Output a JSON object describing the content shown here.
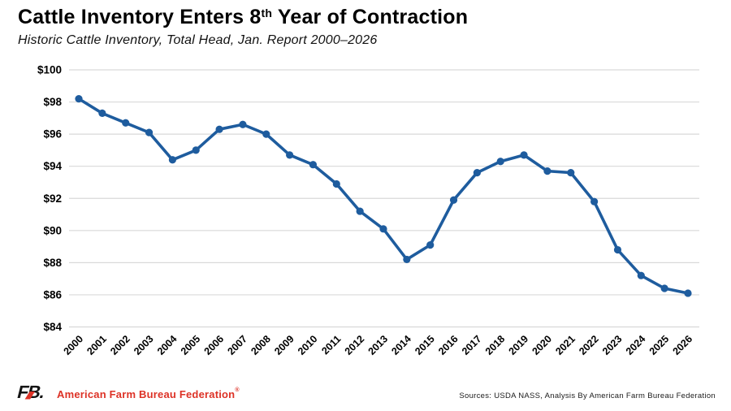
{
  "header": {
    "title_prefix": "Cattle Inventory Enters 8",
    "title_sup": "th",
    "title_suffix": " Year of Contraction",
    "subtitle": "Historic Cattle Inventory, Total Head, Jan. Report 2000–2026"
  },
  "chart_data": {
    "type": "line",
    "title": "Cattle Inventory Enters 8th Year of Contraction",
    "subtitle": "Historic Cattle Inventory, Total Head, Jan. Report 2000–2026",
    "x_labels": [
      "2000",
      "2001",
      "2002",
      "2003",
      "2004",
      "2005",
      "2006",
      "2007",
      "2008",
      "2009",
      "2010",
      "2011",
      "2012",
      "2013",
      "2014",
      "2015",
      "2016",
      "2017",
      "2018",
      "2019",
      "2020",
      "2021",
      "2022",
      "2023",
      "2024",
      "2025",
      "2026"
    ],
    "series": [
      {
        "name": "Total Head (Jan. Report)",
        "values": [
          98.2,
          97.3,
          96.7,
          96.1,
          94.4,
          95.0,
          96.3,
          96.6,
          96.0,
          94.7,
          94.1,
          92.9,
          91.2,
          90.1,
          88.2,
          89.1,
          91.9,
          93.6,
          94.3,
          94.7,
          93.7,
          93.6,
          91.8,
          88.8,
          87.2,
          86.4,
          86.1
        ]
      }
    ],
    "ylim": [
      84,
      100
    ],
    "yticks": [
      {
        "value": 84,
        "label": "$84"
      },
      {
        "value": 86,
        "label": "$86"
      },
      {
        "value": 88,
        "label": "$88"
      },
      {
        "value": 90,
        "label": "$90"
      },
      {
        "value": 92,
        "label": "$92"
      },
      {
        "value": 94,
        "label": "$94"
      },
      {
        "value": 96,
        "label": "$96"
      },
      {
        "value": 98,
        "label": "$98"
      },
      {
        "value": 100,
        "label": "$100"
      }
    ],
    "grid": "horizontal",
    "legend": "none",
    "line_color": "#1E5C9E",
    "grid_color": "#D9D9D9",
    "tick_color": "#000000"
  },
  "footer": {
    "logo_text": "FB.",
    "org_name": "American Farm Bureau Federation",
    "reg_mark": "®",
    "sources": "Sources: USDA NASS, Analysis By American Farm Bureau Federation",
    "accent_red": "#DD3226"
  }
}
